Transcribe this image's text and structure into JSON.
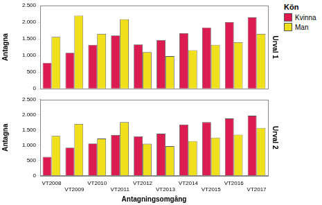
{
  "chart_data": [
    {
      "type": "bar",
      "title": "Urval 1",
      "y_label": "Antagna",
      "categories": [
        "VT2008",
        "VT2009",
        "VT2010",
        "VT2011",
        "VT2012",
        "VT2013",
        "VT2014",
        "VT2015",
        "VT2016",
        "VT2017"
      ],
      "series": [
        {
          "name": "Kvinna",
          "color": "#dc1c50",
          "values": [
            780,
            1080,
            1320,
            1600,
            1330,
            1460,
            1670,
            1840,
            2000,
            2150
          ]
        },
        {
          "name": "Man",
          "color": "#f0e01c",
          "values": [
            1560,
            2200,
            1650,
            2090,
            1100,
            980,
            1160,
            1320,
            1400,
            1650
          ]
        }
      ],
      "ylim": [
        0,
        2500
      ],
      "yticks": [
        0,
        500,
        {
          "value": 1000,
          "label": "1.000"
        },
        {
          "value": 1500,
          "label": "1.500"
        },
        {
          "value": 2000,
          "label": "2.000"
        },
        {
          "value": 2500,
          "label": "2.500"
        }
      ],
      "grid": false,
      "tick_labels": "y",
      "legend": "top right",
      "legend_title": "Kön"
    },
    {
      "type": "bar",
      "title": "Urval 2",
      "x_label": "Antagningsomgång",
      "y_label": "Antagna",
      "categories": [
        "VT2008",
        "VT2009",
        "VT2010",
        "VT2011",
        "VT2012",
        "VT2013",
        "VT2014",
        "VT2015",
        "VT2016",
        "VT2017"
      ],
      "series": [
        {
          "name": "Kvinna",
          "color": "#dc1c50",
          "values": [
            620,
            920,
            1060,
            1340,
            1290,
            1380,
            1680,
            1760,
            1880,
            1970
          ]
        },
        {
          "name": "Man",
          "color": "#f0e01c",
          "values": [
            1310,
            1700,
            1220,
            1760,
            1050,
            970,
            1140,
            1250,
            1350,
            1570
          ]
        }
      ],
      "ylim": [
        0,
        2500
      ],
      "yticks": [
        0,
        500,
        {
          "value": 1000,
          "label": "1.000"
        },
        {
          "value": 1500,
          "label": "1.500"
        },
        {
          "value": 2000,
          "label": "2.000"
        },
        {
          "value": 2500,
          "label": "2.500"
        }
      ],
      "grid": false
    }
  ]
}
